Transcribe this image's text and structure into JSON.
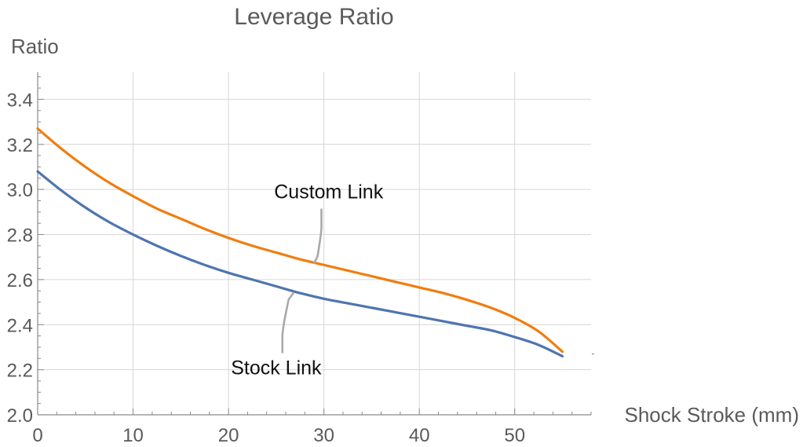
{
  "chart_data": {
    "type": "line",
    "title": "Leverage Ratio",
    "xlabel": "Shock Stroke (mm)",
    "ylabel": "Ratio",
    "xlim": [
      0,
      58
    ],
    "ylim": [
      2.0,
      3.52
    ],
    "xticks": [
      0,
      10,
      20,
      30,
      40,
      50
    ],
    "yticks": [
      2.0,
      2.2,
      2.4,
      2.6,
      2.8,
      3.0,
      3.2,
      3.4
    ],
    "xtick_labels": [
      "0",
      "10",
      "20",
      "30",
      "40",
      "50"
    ],
    "ytick_labels": [
      "2.0",
      "2.2",
      "2.4",
      "2.6",
      "2.8",
      "3.0",
      "3.2",
      "3.4"
    ],
    "grid": true,
    "series": [
      {
        "name": "Custom Link",
        "color": "#f07d10",
        "x": [
          0,
          2.5,
          5,
          7.5,
          10,
          12.5,
          15,
          17.5,
          20,
          22.5,
          25,
          27.5,
          30,
          32.5,
          35,
          37.5,
          40,
          42.5,
          45,
          47.5,
          50,
          52.5,
          55
        ],
        "y": [
          3.27,
          3.18,
          3.1,
          3.03,
          2.97,
          2.915,
          2.87,
          2.825,
          2.785,
          2.75,
          2.72,
          2.69,
          2.665,
          2.64,
          2.615,
          2.59,
          2.565,
          2.54,
          2.51,
          2.475,
          2.43,
          2.37,
          2.28
        ]
      },
      {
        "name": "Stock Link",
        "color": "#4f75b0",
        "x": [
          0,
          2.5,
          5,
          7.5,
          10,
          12.5,
          15,
          17.5,
          20,
          22.5,
          25,
          27.5,
          30,
          32.5,
          35,
          37.5,
          40,
          42.5,
          45,
          47.5,
          50,
          52.5,
          55
        ],
        "y": [
          3.08,
          2.995,
          2.92,
          2.855,
          2.8,
          2.75,
          2.705,
          2.665,
          2.63,
          2.6,
          2.57,
          2.54,
          2.515,
          2.495,
          2.475,
          2.455,
          2.435,
          2.415,
          2.395,
          2.375,
          2.345,
          2.31,
          2.26
        ]
      }
    ],
    "annotations": [
      {
        "series": 0,
        "text": "Custom Link",
        "x": 30.5,
        "y": 2.96,
        "point_x": 29,
        "point_y": 2.675
      },
      {
        "series": 1,
        "text": "Stock Link",
        "x": 25,
        "y": 2.18,
        "point_x": 26.8,
        "point_y": 2.54
      }
    ]
  }
}
